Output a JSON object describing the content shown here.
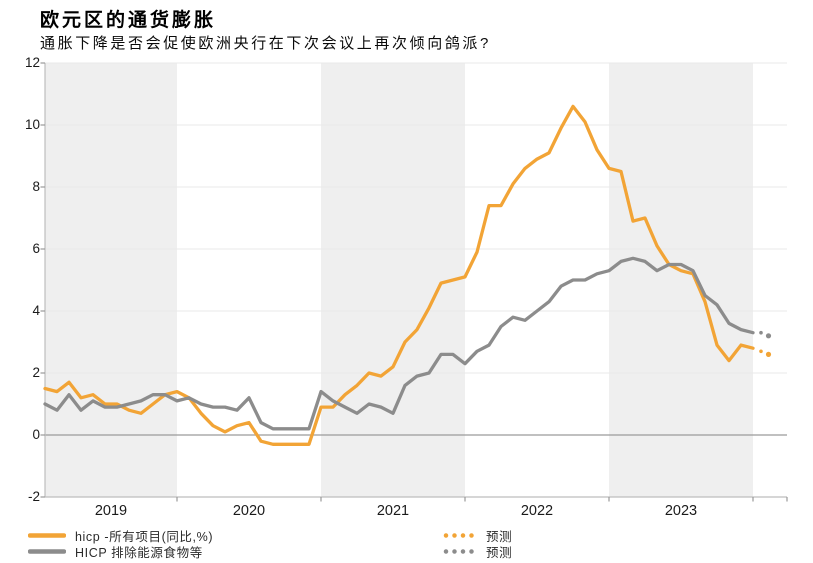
{
  "header": {
    "title": "欧元区的通货膨胀",
    "subtitle": "通胀下降是否会促使欧洲央行在下次会议上再次倾向鸽派?"
  },
  "legend": {
    "items": [
      {
        "label": "hicp -所有项目(同比,%)",
        "color": "#F2A436",
        "style": "solid"
      },
      {
        "label": "HICP 排除能源食物等",
        "color": "#8C8C8C",
        "style": "solid"
      },
      {
        "label": "预测",
        "color": "#F2A436",
        "style": "dotted"
      },
      {
        "label": "预测",
        "color": "#8C8C8C",
        "style": "dotted"
      }
    ]
  },
  "chart_data": {
    "type": "line",
    "title": "欧元区的通货膨胀",
    "subtitle": "通胀下降是否会促使欧洲央行在下次会议上再次倾向鸽派?",
    "x_start_month": "2019-02",
    "x_frequency": "monthly",
    "x_labels": [
      "2019",
      "2020",
      "2021",
      "2022",
      "2023"
    ],
    "y_ticks": [
      -2,
      0,
      2,
      4,
      6,
      8,
      10,
      12
    ],
    "ylim": [
      -2,
      12
    ],
    "unit": "%",
    "zero_line": true,
    "shaded_year_indices": [
      0,
      2,
      4
    ],
    "band_color": "#EFEFEF",
    "grid_color": "#EAEAEA",
    "zero_line_color": "#9A9A9A",
    "axis_color": "#BDBDBD",
    "series": [
      {
        "name": "hicp -所有项目(同比,%)",
        "color": "#F2A436",
        "values": [
          1.5,
          1.4,
          1.7,
          1.2,
          1.3,
          1.0,
          1.0,
          0.8,
          0.7,
          1.0,
          1.3,
          1.4,
          1.2,
          0.7,
          0.3,
          0.1,
          0.3,
          0.4,
          -0.2,
          -0.3,
          -0.3,
          -0.3,
          -0.3,
          0.9,
          0.9,
          1.3,
          1.6,
          2.0,
          1.9,
          2.2,
          3.0,
          3.4,
          4.1,
          4.9,
          5.0,
          5.1,
          5.9,
          7.4,
          7.4,
          8.1,
          8.6,
          8.9,
          9.1,
          9.9,
          10.6,
          10.1,
          9.2,
          8.6,
          8.5,
          6.9,
          7.0,
          6.1,
          5.5,
          5.3,
          5.2,
          4.3,
          2.9,
          2.4,
          2.9,
          2.8
        ],
        "forecast": [
          2.7,
          2.6
        ]
      },
      {
        "name": "HICP 排除能源食物等",
        "color": "#8C8C8C",
        "values": [
          1.0,
          0.8,
          1.3,
          0.8,
          1.1,
          0.9,
          0.9,
          1.0,
          1.1,
          1.3,
          1.3,
          1.1,
          1.2,
          1.0,
          0.9,
          0.9,
          0.8,
          1.2,
          0.4,
          0.2,
          0.2,
          0.2,
          0.2,
          1.4,
          1.1,
          0.9,
          0.7,
          1.0,
          0.9,
          0.7,
          1.6,
          1.9,
          2.0,
          2.6,
          2.6,
          2.3,
          2.7,
          2.9,
          3.5,
          3.8,
          3.7,
          4.0,
          4.3,
          4.8,
          5.0,
          5.0,
          5.2,
          5.3,
          5.6,
          5.7,
          5.6,
          5.3,
          5.5,
          5.5,
          5.3,
          4.5,
          4.2,
          3.6,
          3.4,
          3.3
        ],
        "forecast": [
          3.3,
          3.2
        ]
      }
    ]
  }
}
